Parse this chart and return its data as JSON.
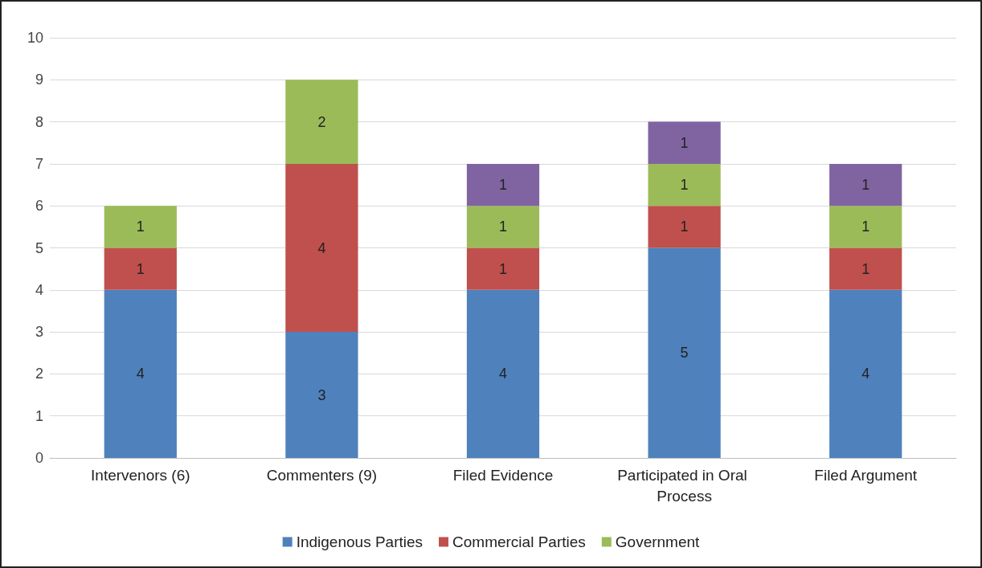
{
  "chart_data": {
    "type": "bar",
    "stacked": true,
    "categories": [
      "Intervenors (6)",
      "Commenters (9)",
      "Filed Evidence",
      "Participated in Oral Process",
      "Filed Argument"
    ],
    "series": [
      {
        "name": "Indigenous Parties",
        "color": "#4f81bd",
        "values": [
          4,
          3,
          4,
          5,
          4
        ]
      },
      {
        "name": "Commercial Parties",
        "color": "#c0504d",
        "values": [
          1,
          4,
          1,
          1,
          1
        ]
      },
      {
        "name": "Government",
        "color": "#9bbb59",
        "values": [
          1,
          2,
          1,
          1,
          1
        ]
      },
      {
        "color": "#8064a2",
        "values": [
          null,
          null,
          1,
          1,
          1
        ]
      }
    ],
    "ylim": [
      0,
      10
    ],
    "yticks": [
      0,
      1,
      2,
      3,
      4,
      5,
      6,
      7,
      8,
      9,
      10
    ],
    "grid": "y",
    "legend": "bottom",
    "data_labels": true
  }
}
